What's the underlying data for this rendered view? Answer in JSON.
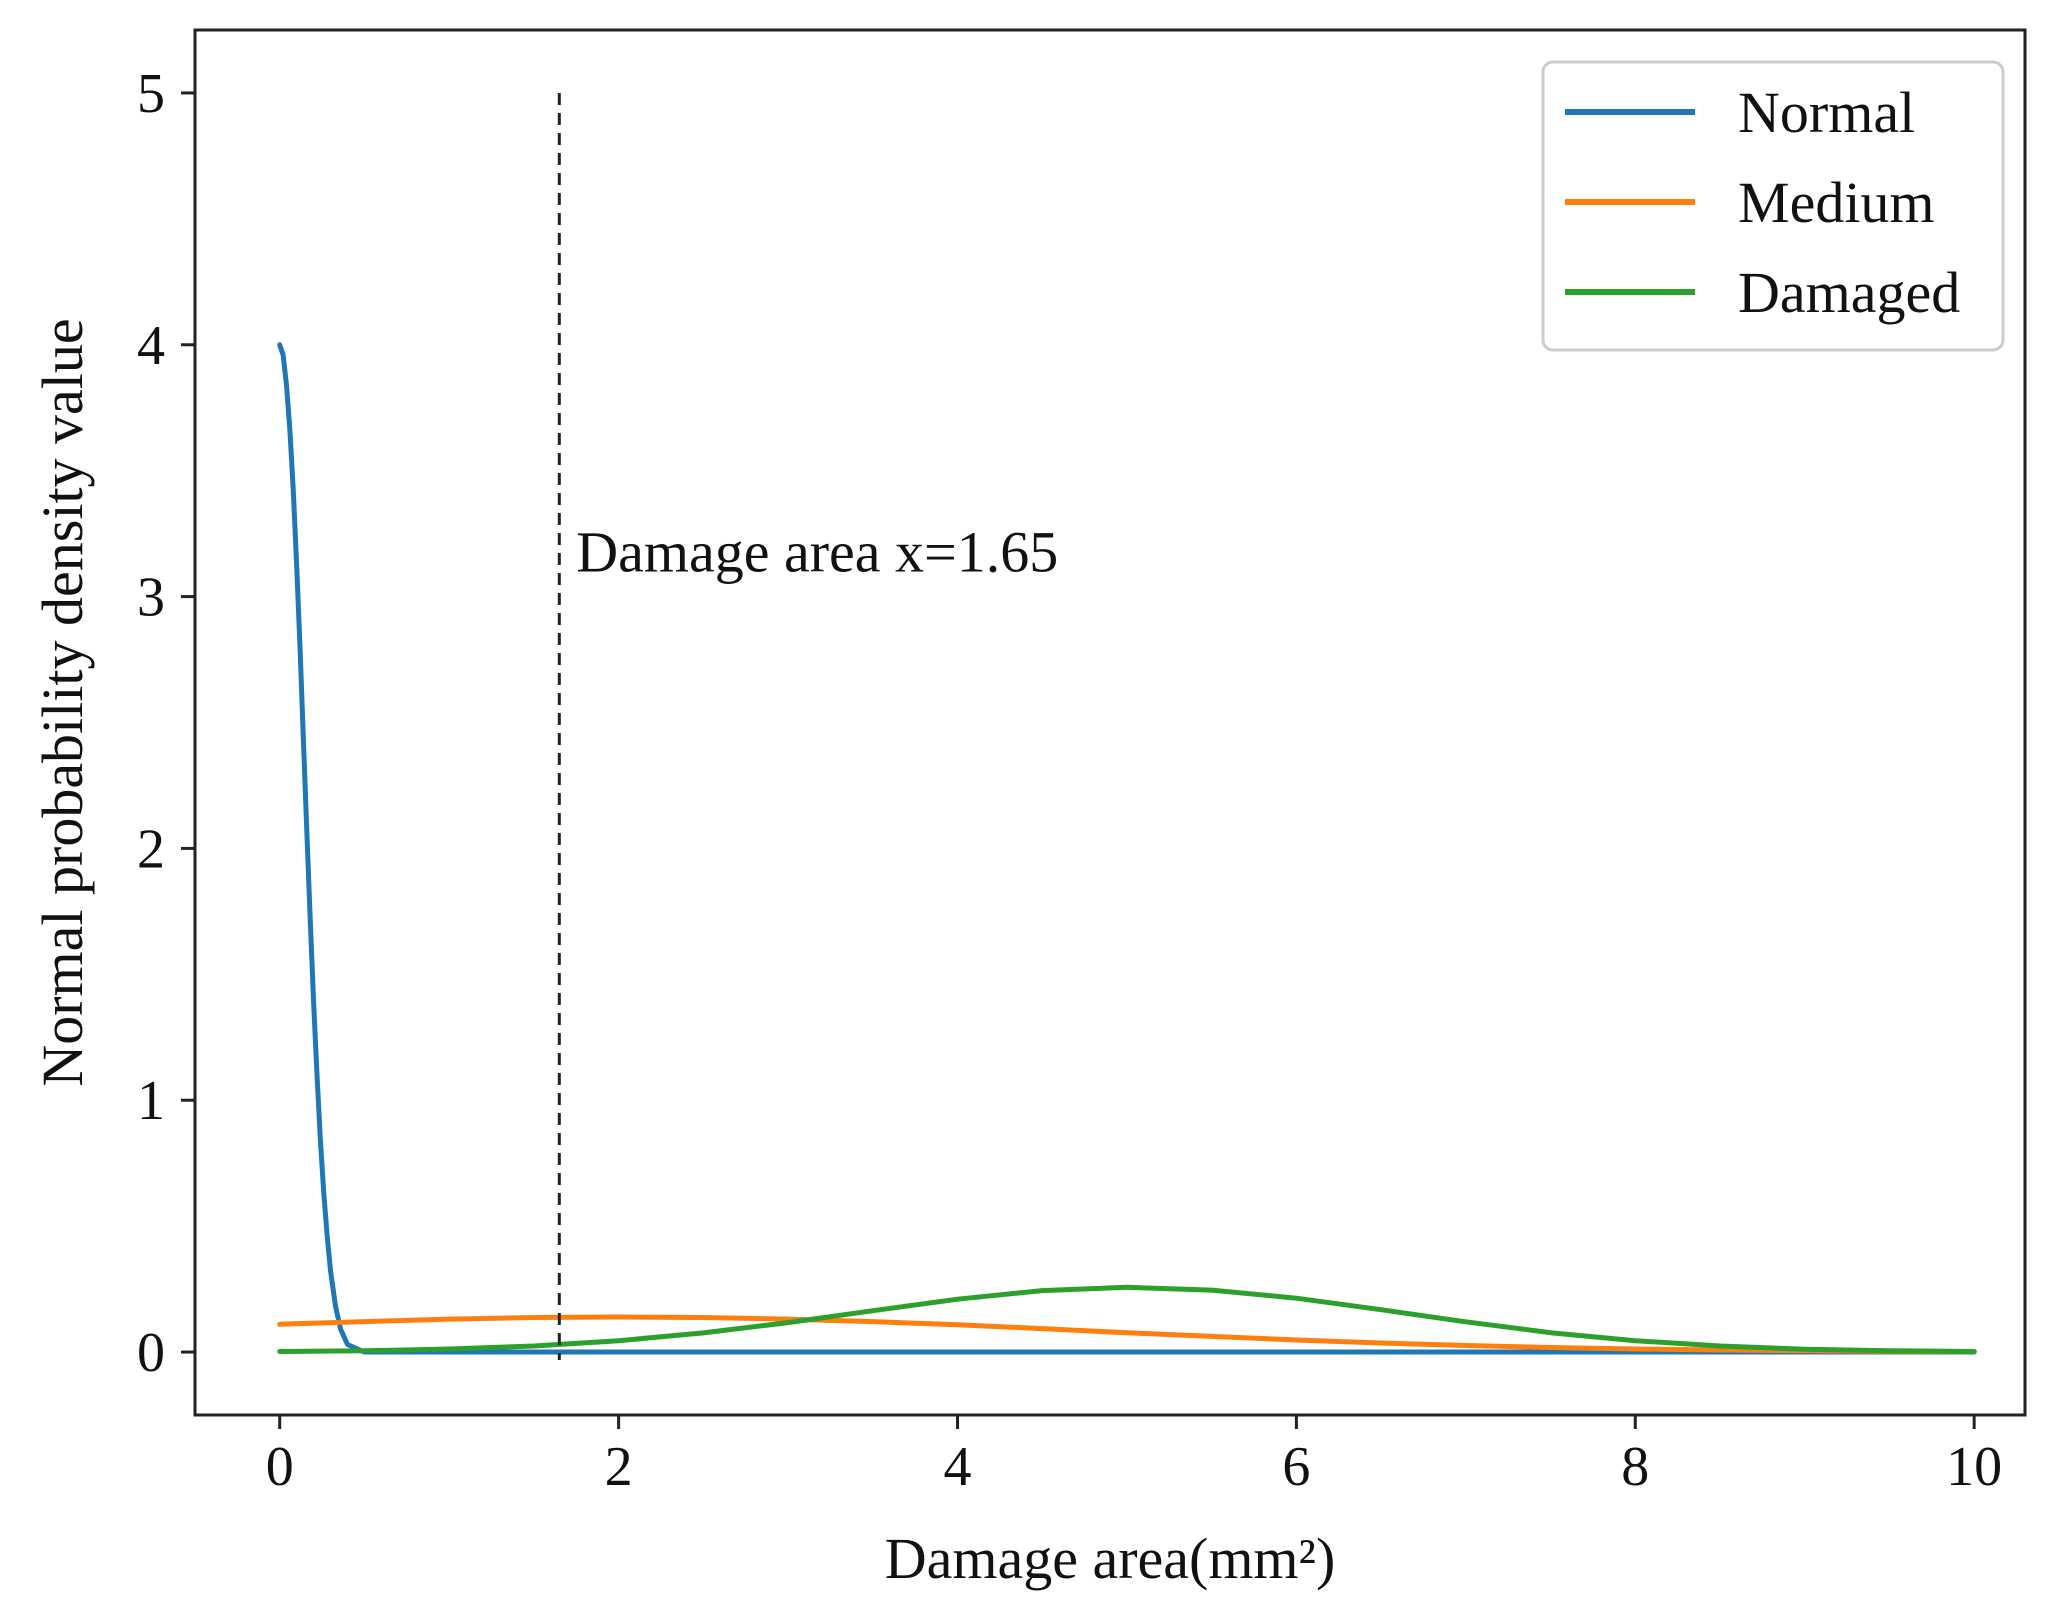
{
  "chart_data": {
    "type": "line",
    "title": "",
    "xlabel": "Damage area(mm²)",
    "ylabel": "Normal probability density value",
    "xlim": [
      -0.5,
      10.3
    ],
    "ylim": [
      -0.25,
      5.25
    ],
    "xticks": [
      0,
      2,
      4,
      6,
      8,
      10
    ],
    "yticks": [
      0,
      1,
      2,
      3,
      4,
      5
    ],
    "grid": false,
    "legend_position": "top-right",
    "series": [
      {
        "name": "Normal",
        "color": "#1f77b4",
        "x": [
          0,
          0.02,
          0.04,
          0.06,
          0.08,
          0.1,
          0.12,
          0.14,
          0.16,
          0.18,
          0.2,
          0.22,
          0.24,
          0.26,
          0.28,
          0.3,
          0.33,
          0.36,
          0.4,
          0.5,
          1,
          2,
          4,
          6,
          8,
          10
        ],
        "y": [
          4.0,
          3.96,
          3.84,
          3.66,
          3.42,
          3.12,
          2.79,
          2.43,
          2.07,
          1.72,
          1.39,
          1.1,
          0.84,
          0.63,
          0.46,
          0.32,
          0.18,
          0.09,
          0.03,
          0.0,
          0.0,
          0.0,
          0.0,
          0.0,
          0.0,
          0.0
        ]
      },
      {
        "name": "Medium",
        "color": "#ff7f0e",
        "x": [
          0,
          0.5,
          1,
          1.5,
          2,
          2.5,
          3,
          3.5,
          4,
          4.5,
          5,
          5.5,
          6,
          6.5,
          7,
          7.5,
          8,
          8.5,
          9,
          9.5,
          10
        ],
        "y": [
          0.11,
          0.121,
          0.131,
          0.137,
          0.139,
          0.137,
          0.131,
          0.121,
          0.108,
          0.093,
          0.077,
          0.062,
          0.048,
          0.036,
          0.026,
          0.018,
          0.012,
          0.008,
          0.005,
          0.003,
          0.002
        ]
      },
      {
        "name": "Damaged",
        "color": "#2ca02c",
        "x": [
          0,
          0.5,
          1,
          1.5,
          2,
          2.5,
          3,
          3.5,
          4,
          4.5,
          5,
          5.5,
          6,
          6.5,
          7,
          7.5,
          8,
          8.5,
          9,
          9.5,
          10
        ],
        "y": [
          0.002,
          0.005,
          0.012,
          0.024,
          0.045,
          0.076,
          0.117,
          0.164,
          0.21,
          0.244,
          0.257,
          0.246,
          0.214,
          0.168,
          0.12,
          0.077,
          0.045,
          0.024,
          0.011,
          0.005,
          0.002
        ]
      }
    ],
    "vline": {
      "x": 1.65,
      "y_range": [
        0,
        5
      ],
      "style": "dashed",
      "color": "#222222"
    },
    "annotations": [
      {
        "text": "Damage area x=1.65",
        "x": 1.75,
        "y": 3.1
      }
    ]
  }
}
